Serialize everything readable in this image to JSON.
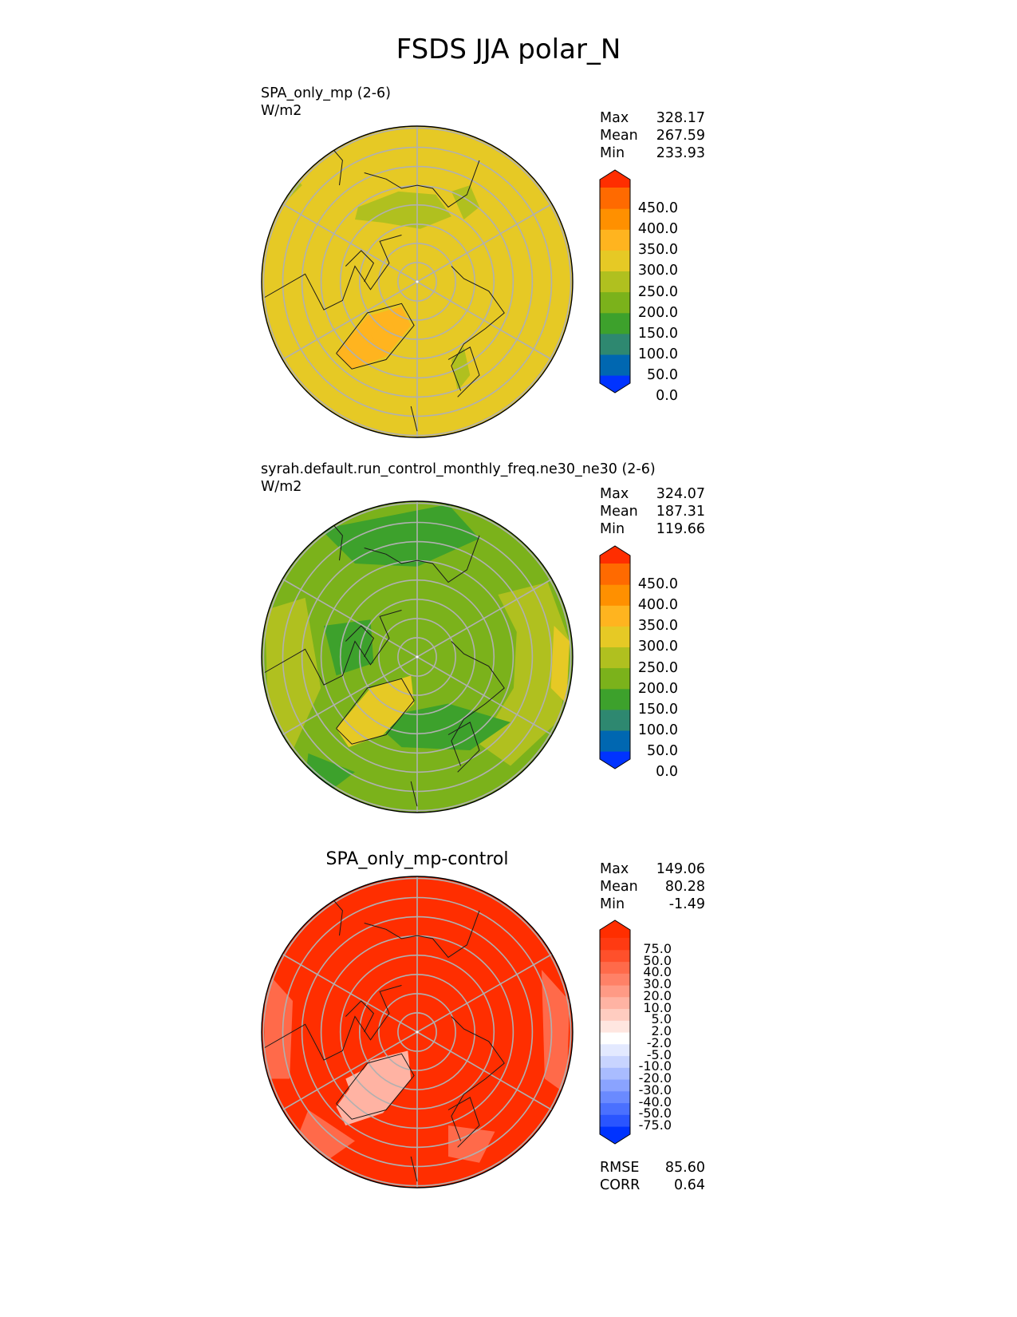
{
  "figure": {
    "title": "FSDS JJA polar_N"
  },
  "colors": {
    "frame": "#000000",
    "grid": "#b0b0b0",
    "coast": "#1a1a1a"
  },
  "chart_data": [
    {
      "type": "heatmap",
      "projection": "north-polar-stereographic",
      "title_line1": "SPA_only_mp (2-6)",
      "title_line2": "W/m2",
      "stats": [
        {
          "label": "Max",
          "value": "328.17"
        },
        {
          "label": "Mean",
          "value": "267.59"
        },
        {
          "label": "Min",
          "value": "233.93"
        }
      ],
      "background_color": "#e6c925",
      "regions": [
        {
          "value": 225,
          "color": "#b0c01f"
        },
        {
          "value": 225,
          "color": "#b0c01f"
        },
        {
          "value": 225,
          "color": "#b0c01f"
        },
        {
          "value": 325,
          "color": "#ffb41f"
        },
        {
          "value": 225,
          "color": "#b0c01f"
        },
        {
          "value": 325,
          "color": "#ffb41f"
        }
      ],
      "colorbar": {
        "colors": [
          "#0033ff",
          "#0067b1",
          "#2e8870",
          "#3da12c",
          "#7bb21b",
          "#b0c01f",
          "#e6c925",
          "#ffb41f",
          "#ff9000",
          "#ff6a00",
          "#ff2e00"
        ],
        "ticks": [
          "450.0",
          "400.0",
          "350.0",
          "300.0",
          "250.0",
          "200.0",
          "150.0",
          "100.0",
          "50.0",
          "0.0"
        ]
      }
    },
    {
      "type": "heatmap",
      "projection": "north-polar-stereographic",
      "title_line1": "syrah.default.run_control_monthly_freq.ne30_ne30 (2-6)",
      "title_line2": "W/m2",
      "stats": [
        {
          "label": "Max",
          "value": "324.07"
        },
        {
          "label": "Mean",
          "value": "187.31"
        },
        {
          "label": "Min",
          "value": "119.66"
        }
      ],
      "background_color": "#7bb21b",
      "regions": [
        {
          "value": 225,
          "color": "#b0c01f"
        },
        {
          "value": 225,
          "color": "#b0c01f"
        },
        {
          "value": 125,
          "color": "#3da12c"
        },
        {
          "value": 125,
          "color": "#3da12c"
        },
        {
          "value": 125,
          "color": "#3da12c"
        },
        {
          "value": 275,
          "color": "#e6c925"
        },
        {
          "value": 125,
          "color": "#3da12c"
        },
        {
          "value": 275,
          "color": "#e6c925"
        }
      ],
      "colorbar": {
        "colors": [
          "#0033ff",
          "#0067b1",
          "#2e8870",
          "#3da12c",
          "#7bb21b",
          "#b0c01f",
          "#e6c925",
          "#ffb41f",
          "#ff9000",
          "#ff6a00",
          "#ff2e00"
        ],
        "ticks": [
          "450.0",
          "400.0",
          "350.0",
          "300.0",
          "250.0",
          "200.0",
          "150.0",
          "100.0",
          "50.0",
          "0.0"
        ]
      }
    },
    {
      "type": "heatmap",
      "projection": "north-polar-stereographic",
      "title_line1": "SPA_only_mp-control",
      "stats": [
        {
          "label": "Max",
          "value": "149.06"
        },
        {
          "label": "Mean",
          "value": "80.28"
        },
        {
          "label": "Min",
          "value": "-1.49"
        }
      ],
      "extra_stats": [
        {
          "label": "RMSE",
          "value": "85.60"
        },
        {
          "label": "CORR",
          "value": "0.64"
        }
      ],
      "background_color": "#ff2e00",
      "regions": [
        {
          "value": 45,
          "color": "#ff6a4a"
        },
        {
          "value": 45,
          "color": "#ff6a4a"
        },
        {
          "value": 45,
          "color": "#ff6a4a"
        },
        {
          "value": 15,
          "color": "#ffb3a3"
        },
        {
          "value": 45,
          "color": "#ff6a4a"
        },
        {
          "value": 15,
          "color": "#ffb3a3"
        }
      ],
      "colorbar": {
        "colors": [
          "#0033ff",
          "#2a55ff",
          "#4a70ff",
          "#6a8aff",
          "#8aa3ff",
          "#a9bcff",
          "#c8d4ff",
          "#e3e9ff",
          "#ffffff",
          "#ffe6e0",
          "#ffccc0",
          "#ffb3a3",
          "#ff9a85",
          "#ff8167",
          "#ff6a4a",
          "#ff502b",
          "#ff3a12",
          "#ff2e00"
        ],
        "ticks": [
          "75.0",
          "50.0",
          "40.0",
          "30.0",
          "20.0",
          "10.0",
          "5.0",
          "2.0",
          "-2.0",
          "-5.0",
          "-10.0",
          "-20.0",
          "-30.0",
          "-40.0",
          "-50.0",
          "-75.0"
        ]
      }
    }
  ]
}
